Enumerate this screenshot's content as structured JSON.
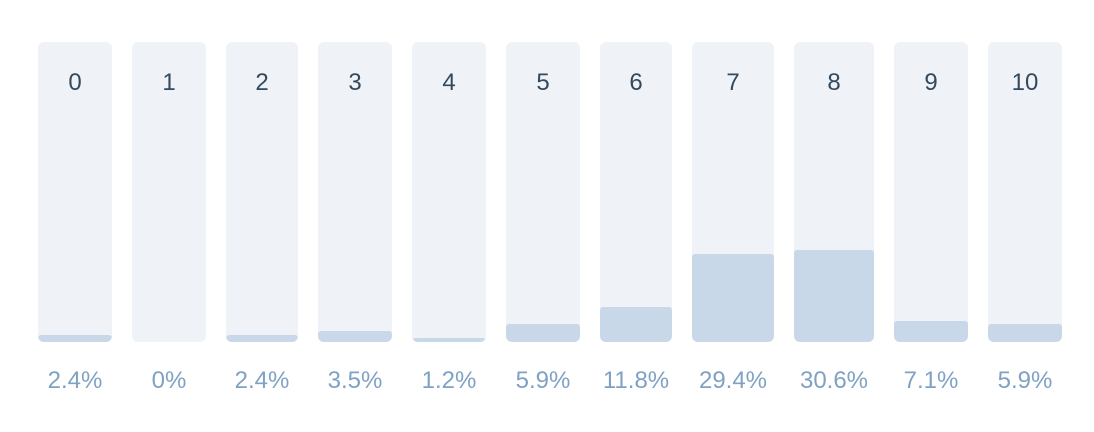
{
  "chart_data": {
    "type": "bar",
    "categories": [
      "0",
      "1",
      "2",
      "3",
      "4",
      "5",
      "6",
      "7",
      "8",
      "9",
      "10"
    ],
    "values": [
      2.4,
      0,
      2.4,
      3.5,
      1.2,
      5.9,
      11.8,
      29.4,
      30.6,
      7.1,
      5.9
    ],
    "value_labels": [
      "2.4%",
      "0%",
      "2.4%",
      "3.5%",
      "1.2%",
      "5.9%",
      "11.8%",
      "29.4%",
      "30.6%",
      "7.1%",
      "5.9%"
    ],
    "title": "",
    "xlabel": "",
    "ylabel": "",
    "ylim": [
      0,
      100
    ],
    "grid": false,
    "colors": {
      "track": "#eff3f8",
      "fill": "#c9d8e8",
      "category_text": "#34495e",
      "value_text": "#7fa2c4"
    }
  }
}
